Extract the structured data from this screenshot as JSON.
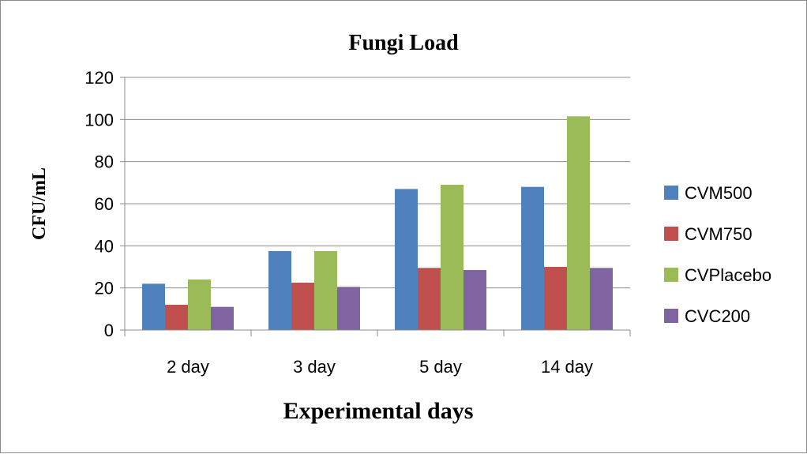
{
  "chart_data": {
    "type": "bar",
    "title": "Fungi Load",
    "xlabel": "Experimental days",
    "ylabel": "CFU/mL",
    "categories": [
      "2 day",
      "3 day",
      "5 day",
      "14 day"
    ],
    "ylim": [
      0,
      120
    ],
    "yticks": [
      0,
      20,
      40,
      60,
      80,
      100,
      120
    ],
    "grid": true,
    "legend_position": "right",
    "series": [
      {
        "name": "CVM500",
        "color": "#4f81bd",
        "values": [
          22,
          37.5,
          67,
          68
        ]
      },
      {
        "name": "CVM750",
        "color": "#c0504d",
        "values": [
          12,
          22.5,
          29.5,
          30
        ]
      },
      {
        "name": "CVPlacebo",
        "color": "#9bbb59",
        "values": [
          24,
          37.5,
          69,
          101.5
        ]
      },
      {
        "name": "CVC200",
        "color": "#8064a2",
        "values": [
          11,
          20.5,
          28.5,
          29.5
        ]
      }
    ]
  }
}
